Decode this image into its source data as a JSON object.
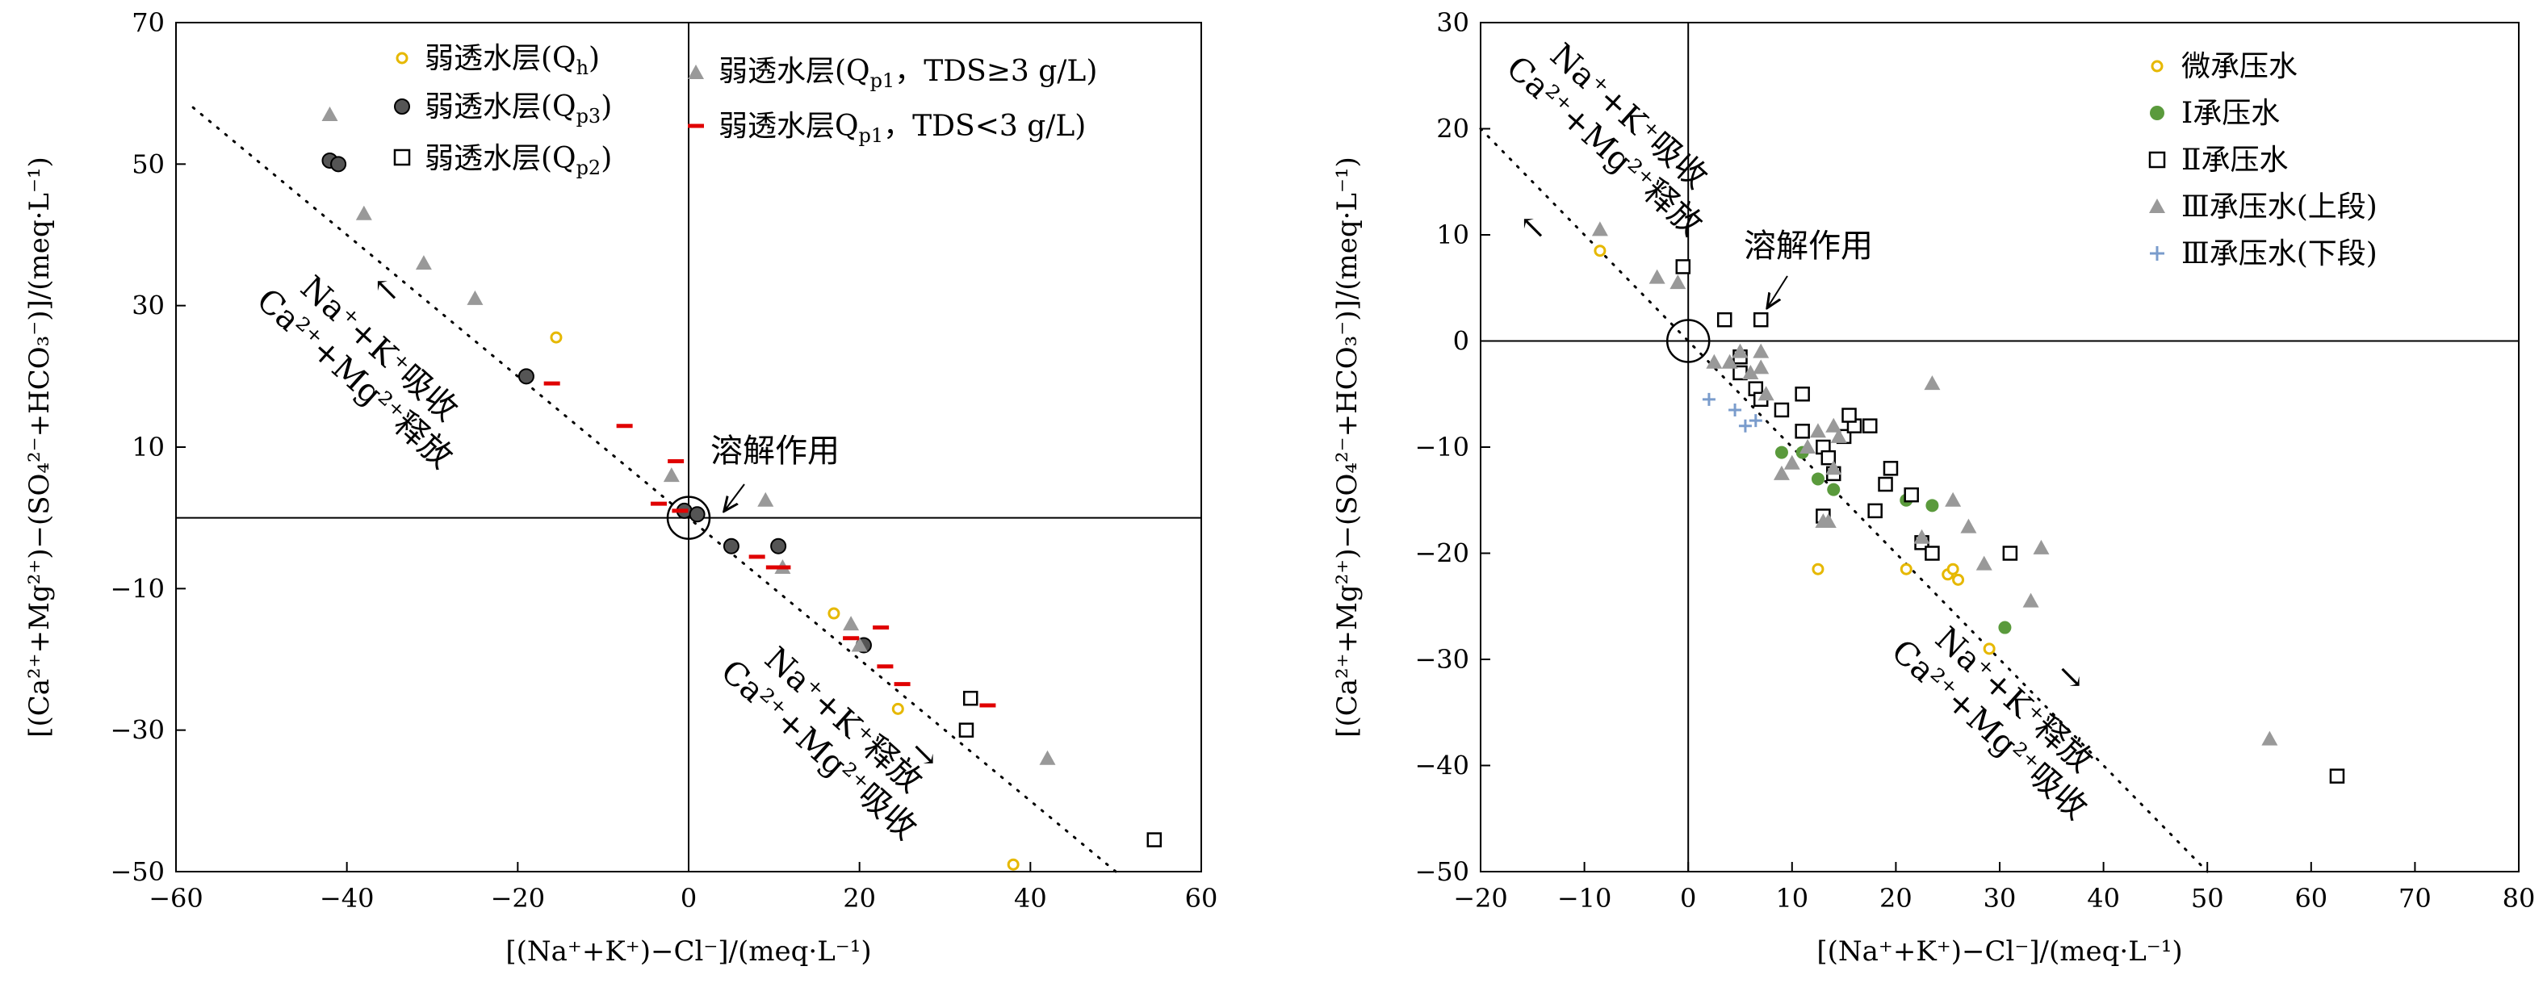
{
  "chart_data": [
    {
      "type": "scatter",
      "xlabel": "[(Na⁺+K⁺)−Cl⁻]/(meq·L⁻¹)",
      "ylabel": "[(Ca²⁺+Mg²⁺)−(SO₄²⁻+HCO₃⁻)]/(meq·L⁻¹)",
      "xlim": [
        -60,
        60
      ],
      "ylim": [
        -50,
        70
      ],
      "xticks": [
        "−60",
        "−40",
        "−20",
        "0",
        "20",
        "40",
        "60"
      ],
      "yticks": [
        "−50",
        "−30",
        "−10",
        "10",
        "30",
        "50",
        "70"
      ],
      "grid": false,
      "legend_position": "top",
      "reference_line": {
        "x1": -58,
        "y1": 58,
        "x2": 50,
        "y2": -50
      },
      "annotations": {
        "dissolution": "溶解作用",
        "upper_left_line1": "Na⁺+K⁺吸收",
        "upper_left_line2": "Ca²⁺+Mg²⁺释放",
        "lower_right_line1": "Na⁺+K⁺释放",
        "lower_right_line2": "Ca²⁺+Mg²⁺吸收"
      },
      "series": [
        {
          "name": "弱透水层(Qh)",
          "marker": "circle-open",
          "color": "#e6b800",
          "points": [
            [
              -15.5,
              25.5
            ],
            [
              17,
              -13.5
            ],
            [
              24.5,
              -27
            ],
            [
              38,
              -49
            ]
          ]
        },
        {
          "name": "弱透水层(Qp3)",
          "marker": "circle-filled",
          "color": "#555555",
          "points": [
            [
              -42,
              50.5
            ],
            [
              -41,
              50
            ],
            [
              -19,
              20
            ],
            [
              -0.5,
              1
            ],
            [
              1,
              0.5
            ],
            [
              5,
              -4
            ],
            [
              10.5,
              -4
            ],
            [
              20.5,
              -18
            ]
          ]
        },
        {
          "name": "弱透水层(Qp2)",
          "marker": "square-open",
          "color": "#000000",
          "points": [
            [
              33,
              -25.5
            ],
            [
              32.5,
              -30
            ],
            [
              54.5,
              -45.5
            ]
          ]
        },
        {
          "name": "弱透水层(Qp1，TDS≥3 g/L)",
          "marker": "triangle",
          "color": "#999999",
          "points": [
            [
              -42,
              57
            ],
            [
              -38,
              43
            ],
            [
              -31,
              36
            ],
            [
              -25,
              31
            ],
            [
              -2,
              6
            ],
            [
              9,
              2.5
            ],
            [
              11,
              -7
            ],
            [
              19,
              -15
            ],
            [
              20,
              -18
            ],
            [
              42,
              -34
            ]
          ]
        },
        {
          "name": "弱透水层Qp1，TDS<3 g/L)",
          "marker": "dash",
          "color": "#e00000",
          "points": [
            [
              -16,
              19
            ],
            [
              -7.5,
              13
            ],
            [
              -1.5,
              8
            ],
            [
              -3.5,
              2
            ],
            [
              -1,
              1
            ],
            [
              8,
              -5.5
            ],
            [
              10,
              -7
            ],
            [
              11,
              -7
            ],
            [
              19,
              -17
            ],
            [
              22.5,
              -15.5
            ],
            [
              23,
              -21
            ],
            [
              25,
              -23.5
            ],
            [
              35,
              -26.5
            ]
          ]
        }
      ]
    },
    {
      "type": "scatter",
      "xlabel": "[(Na⁺+K⁺)−Cl⁻]/(meq·L⁻¹)",
      "ylabel": "[(Ca²⁺+Mg²⁺)−(SO₄²⁻+HCO₃⁻)]/(meq·L⁻¹)",
      "xlim": [
        -20,
        80
      ],
      "ylim": [
        -50,
        30
      ],
      "xticks": [
        "−20",
        "−10",
        "0",
        "10",
        "20",
        "30",
        "40",
        "50",
        "60",
        "70",
        "80"
      ],
      "yticks": [
        "−50",
        "−40",
        "−30",
        "−20",
        "−10",
        "0",
        "10",
        "20",
        "30"
      ],
      "grid": false,
      "legend_position": "top-right",
      "reference_line": {
        "x1": -20,
        "y1": 20,
        "x2": 50,
        "y2": -50
      },
      "annotations": {
        "dissolution": "溶解作用",
        "upper_left_line1": "Na⁺+K⁺吸收",
        "upper_left_line2": "Ca²⁺+Mg²⁺释放",
        "lower_right_line1": "Na⁺+K⁺释放",
        "lower_right_line2": "Ca²⁺+Mg²⁺吸收"
      },
      "series": [
        {
          "name": "微承压水",
          "marker": "circle-open",
          "color": "#e6b800",
          "points": [
            [
              -8.5,
              8.5
            ],
            [
              12.5,
              -21.5
            ],
            [
              21,
              -21.5
            ],
            [
              25,
              -22
            ],
            [
              25.5,
              -21.5
            ],
            [
              26,
              -22.5
            ],
            [
              29,
              -29
            ]
          ]
        },
        {
          "name": "Ⅰ承压水",
          "marker": "circle-filled",
          "color": "#5a9a3c",
          "points": [
            [
              9,
              -10.5
            ],
            [
              11,
              -10.5
            ],
            [
              12.5,
              -13
            ],
            [
              14,
              -14
            ],
            [
              21,
              -15
            ],
            [
              23.5,
              -15.5
            ],
            [
              30.5,
              -27
            ]
          ]
        },
        {
          "name": "Ⅱ承压水",
          "marker": "square-open",
          "color": "#000000",
          "points": [
            [
              -0.5,
              7
            ],
            [
              3.5,
              2
            ],
            [
              7,
              2
            ],
            [
              5,
              -1.5
            ],
            [
              5,
              -3
            ],
            [
              6.5,
              -4.5
            ],
            [
              7,
              -5.5
            ],
            [
              9,
              -6.5
            ],
            [
              11,
              -5
            ],
            [
              11,
              -8.5
            ],
            [
              13,
              -10
            ],
            [
              13.5,
              -11
            ],
            [
              14,
              -12.5
            ],
            [
              15,
              -9
            ],
            [
              16,
              -8
            ],
            [
              15.5,
              -7
            ],
            [
              17.5,
              -8
            ],
            [
              19,
              -13.5
            ],
            [
              19.5,
              -12
            ],
            [
              18,
              -16
            ],
            [
              21.5,
              -14.5
            ],
            [
              22.5,
              -19
            ],
            [
              23.5,
              -20
            ],
            [
              13,
              -16.5
            ],
            [
              31,
              -20
            ],
            [
              62.5,
              -41
            ]
          ]
        },
        {
          "name": "Ⅲ承压水(上段)",
          "marker": "triangle",
          "color": "#999999",
          "points": [
            [
              -8.5,
              10.5
            ],
            [
              -3,
              6
            ],
            [
              -1,
              5.5
            ],
            [
              2.5,
              -2
            ],
            [
              4,
              -2
            ],
            [
              5,
              -1
            ],
            [
              6,
              -3
            ],
            [
              7,
              -1
            ],
            [
              7,
              -2.5
            ],
            [
              7.5,
              -5
            ],
            [
              9,
              -12.5
            ],
            [
              10,
              -11.5
            ],
            [
              11.5,
              -10
            ],
            [
              12.5,
              -8.5
            ],
            [
              13,
              -17
            ],
            [
              13.5,
              -17
            ],
            [
              14,
              -8
            ],
            [
              14,
              -12
            ],
            [
              14.5,
              -9
            ],
            [
              22.5,
              -18.5
            ],
            [
              23.5,
              -4
            ],
            [
              25.5,
              -15
            ],
            [
              27,
              -17.5
            ],
            [
              28.5,
              -21
            ],
            [
              33,
              -24.5
            ],
            [
              34,
              -19.5
            ],
            [
              56,
              -37.5
            ]
          ]
        },
        {
          "name": "Ⅲ承压水(下段)",
          "marker": "plus",
          "color": "#7a9ccc",
          "points": [
            [
              2,
              -5.5
            ],
            [
              4.5,
              -6.5
            ],
            [
              5.5,
              -8
            ],
            [
              6.5,
              -7.5
            ]
          ]
        }
      ]
    }
  ],
  "legend_left": {
    "qh": [
      "弱透水层(Q",
      "h",
      ")"
    ],
    "qp3": [
      "弱透水层(Q",
      "p3",
      ")"
    ],
    "qp2": [
      "弱透水层(Q",
      "p2",
      ")"
    ],
    "qp1_high": [
      "弱透水层(Q",
      "p1",
      "，TDS≥3 g/L)"
    ],
    "qp1_low": [
      "弱透水层Q",
      "p1",
      "，TDS<3 g/L)"
    ]
  },
  "legend_right": {
    "s1": "微承压水",
    "s2": "Ⅰ承压水",
    "s3": "Ⅱ承压水",
    "s4": "Ⅲ承压水(上段)",
    "s5": "Ⅲ承压水(下段)"
  },
  "arrows": {
    "up_left": "↖",
    "down_right": "↘"
  }
}
